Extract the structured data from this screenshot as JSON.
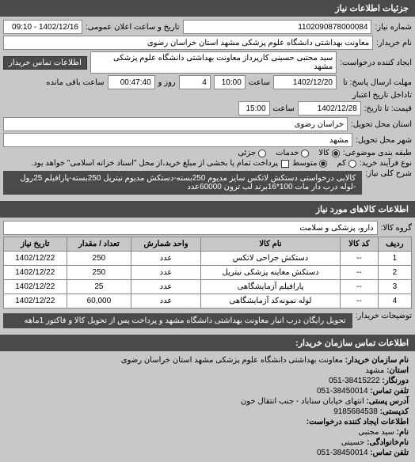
{
  "header": {
    "title": "جزئیات اطلاعات نیاز"
  },
  "form": {
    "request_number_label": "شماره نیاز:",
    "request_number": "1102090878000084",
    "public_date_label": "تاریخ و ساعت اعلان عمومی:",
    "public_date": "1402/12/16 - 09:10",
    "buyer_name_label": "نام خریدار:",
    "buyer_name": "معاونت بهداشتی دانشگاه علوم پزشکی مشهد استان خراسان رضوی",
    "creator_label": "ایجاد کننده درخواست:",
    "creator": "سید مجتبی حسینی کارپرداز معاونت بهداشتی دانشگاه علوم پزشکی مشهد",
    "contact_btn": "اطلاعات تماس خریدار",
    "deadline_send_label": "مهلت ارسال پاسخ: تا",
    "deadline_send_date": "1402/12/20",
    "time_label": "ساعت",
    "deadline_send_time": "10:00",
    "days_label": "روز و",
    "days_value": "4",
    "remaining_label": "ساعت باقی مانده",
    "remaining_time": "00:47:40",
    "valid_date_label": "تا‌داخل تاریخ اعتبار",
    "quote_label": "قیمت: تا تاریخ:",
    "quote_date": "1402/12/28",
    "quote_time": "15:00",
    "delivery_province_label": "استان محل تحویل:",
    "delivery_province": "خراسان رضوی",
    "delivery_city_label": "شهر محل تحویل:",
    "delivery_city": "مشهد",
    "budget_type_label": "طبقه بندی موضوعی:",
    "budget_options": {
      "goods": "کالا",
      "services": "خدمات",
      "partial": "جزئی"
    },
    "process_type_label": "نوع فرآیند خرید:",
    "process_options": {
      "low": "کم",
      "medium": "متوسط"
    },
    "payment_note": "پرداخت تمام یا بخشی از مبلغ خرید،از محل \"اسناد خزانه اسلامی\" خواهد بود.",
    "general_desc_label": "شرح کلی نیاز:",
    "general_desc": "کالایی درخواستی دستکش لاتکس سایز مدیوم 250بسته-دستکش مدیوم نیتریل 250بسته-پارافیلم 25رول -لوله درب دار مات 100*16برند لب ترون 60000عدد"
  },
  "goods_header": "اطلاعات کالاهای مورد نیاز",
  "goods_group_label": "گروه کالا:",
  "goods_group": "دارو، پزشکی و سلامت",
  "table": {
    "columns": [
      "ردیف",
      "کد کالا",
      "نام کالا",
      "واحد شمارش",
      "تعداد / مقدار",
      "تاریخ نیاز"
    ],
    "rows": [
      [
        "1",
        "--",
        "دستکش جراحی لاتکس",
        "عدد",
        "250",
        "1402/12/22"
      ],
      [
        "2",
        "--",
        "دستکش معاینه پزشکی نیتریل",
        "عدد",
        "250",
        "1402/12/22"
      ],
      [
        "3",
        "--",
        "پارافیلم آزمایشگاهی",
        "عدد",
        "25",
        "1402/12/22"
      ],
      [
        "4",
        "--",
        "لوله نمونه‌کد آزمایشگاهی",
        "عدد",
        "60,000",
        "1402/12/22"
      ]
    ]
  },
  "buyer_notes_label": "توضیحات خریدار:",
  "buyer_notes": "تحویل رایگان درب انبار معاونت بهداشتی دانشگاه مشهد و پرداخت پس از تحویل کالا و فاکتور 1ماهه",
  "contact_header": "اطلاعات تماس سازمان خریدار:",
  "contact": {
    "org_label": "نام سازمان خریدار:",
    "org": "معاونت بهداشتی دانشگاه علوم پزشکی مشهد استان خراسان رضوی",
    "province_label": "استان:",
    "province": "مشهد",
    "phone_label": "دورنگار:",
    "phone": "38415222-051",
    "contact_phone_label": "تلفن تماس:",
    "contact_phone": "38450014-051",
    "address_label": "آدرس پستی:",
    "address": "انتهای خیابان سناباد - جنب انتقال خون",
    "postal_label": "کدپستی:",
    "postal": "9185684538",
    "creator_info_label": "اطلاعات ایجاد کننده درخواست:",
    "name_label": "نام:",
    "name": "سید مجتبی",
    "family_label": "نام‌خانوادگی:",
    "family": "حسینی",
    "tel_label": "تلفن تماس:",
    "tel": "38450014-051"
  }
}
